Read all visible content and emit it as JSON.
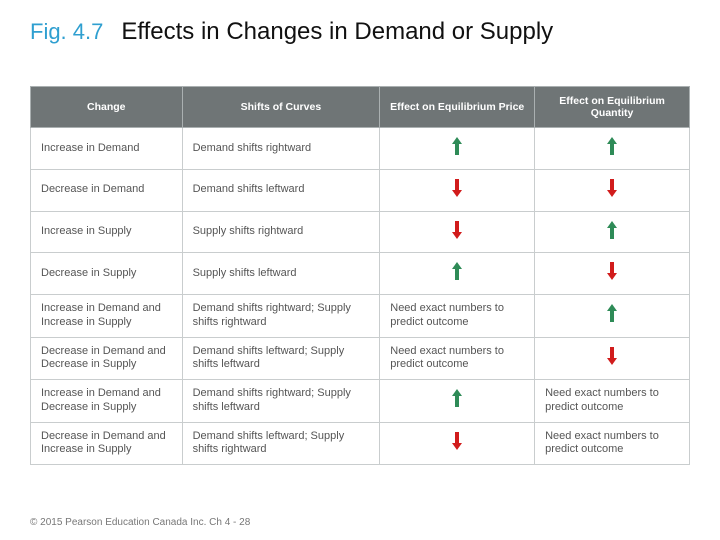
{
  "colors": {
    "accent_blue": "#2f9fd0",
    "header_bg": "#6f7576",
    "header_text": "#ffffff",
    "body_text": "#555555",
    "border": "#c9cdce",
    "up_arrow": "#2e8b57",
    "down_arrow": "#d11c1c",
    "footer_text": "#777777"
  },
  "fig_label": "Fig. 4.7",
  "fig_title": "Effects in Changes in Demand or Supply",
  "footer": "© 2015 Pearson Education Canada Inc.  Ch 4 - 28",
  "columns": [
    "Change",
    "Shifts of Curves",
    "Effect on Equilibrium Price",
    "Effect on Equilibrium Quantity"
  ],
  "rows": [
    {
      "change": "Increase in Demand",
      "shift": "Demand shifts rightward",
      "price": {
        "type": "arrow",
        "dir": "up"
      },
      "qty": {
        "type": "arrow",
        "dir": "up"
      }
    },
    {
      "change": "Decrease in Demand",
      "shift": "Demand shifts leftward",
      "price": {
        "type": "arrow",
        "dir": "down"
      },
      "qty": {
        "type": "arrow",
        "dir": "down"
      }
    },
    {
      "change": "Increase in Supply",
      "shift": "Supply shifts rightward",
      "price": {
        "type": "arrow",
        "dir": "down"
      },
      "qty": {
        "type": "arrow",
        "dir": "up"
      }
    },
    {
      "change": "Decrease in Supply",
      "shift": "Supply shifts leftward",
      "price": {
        "type": "arrow",
        "dir": "up"
      },
      "qty": {
        "type": "arrow",
        "dir": "down"
      }
    },
    {
      "change": "Increase in Demand and Increase in Supply",
      "shift": "Demand shifts rightward; Supply shifts rightward",
      "price": {
        "type": "text",
        "value": "Need exact numbers to predict outcome"
      },
      "qty": {
        "type": "arrow",
        "dir": "up"
      }
    },
    {
      "change": "Decrease in Demand and Decrease in Supply",
      "shift": "Demand shifts leftward; Supply shifts leftward",
      "price": {
        "type": "text",
        "value": "Need exact numbers to predict outcome"
      },
      "qty": {
        "type": "arrow",
        "dir": "down"
      }
    },
    {
      "change": "Increase in Demand and Decrease in Supply",
      "shift": "Demand shifts rightward; Supply shifts leftward",
      "price": {
        "type": "arrow",
        "dir": "up"
      },
      "qty": {
        "type": "text",
        "value": "Need exact numbers to predict outcome"
      }
    },
    {
      "change": "Decrease in Demand and Increase in Supply",
      "shift": "Demand shifts leftward; Supply shifts rightward",
      "price": {
        "type": "arrow",
        "dir": "down"
      },
      "qty": {
        "type": "text",
        "value": "Need exact numbers to predict outcome"
      }
    }
  ]
}
